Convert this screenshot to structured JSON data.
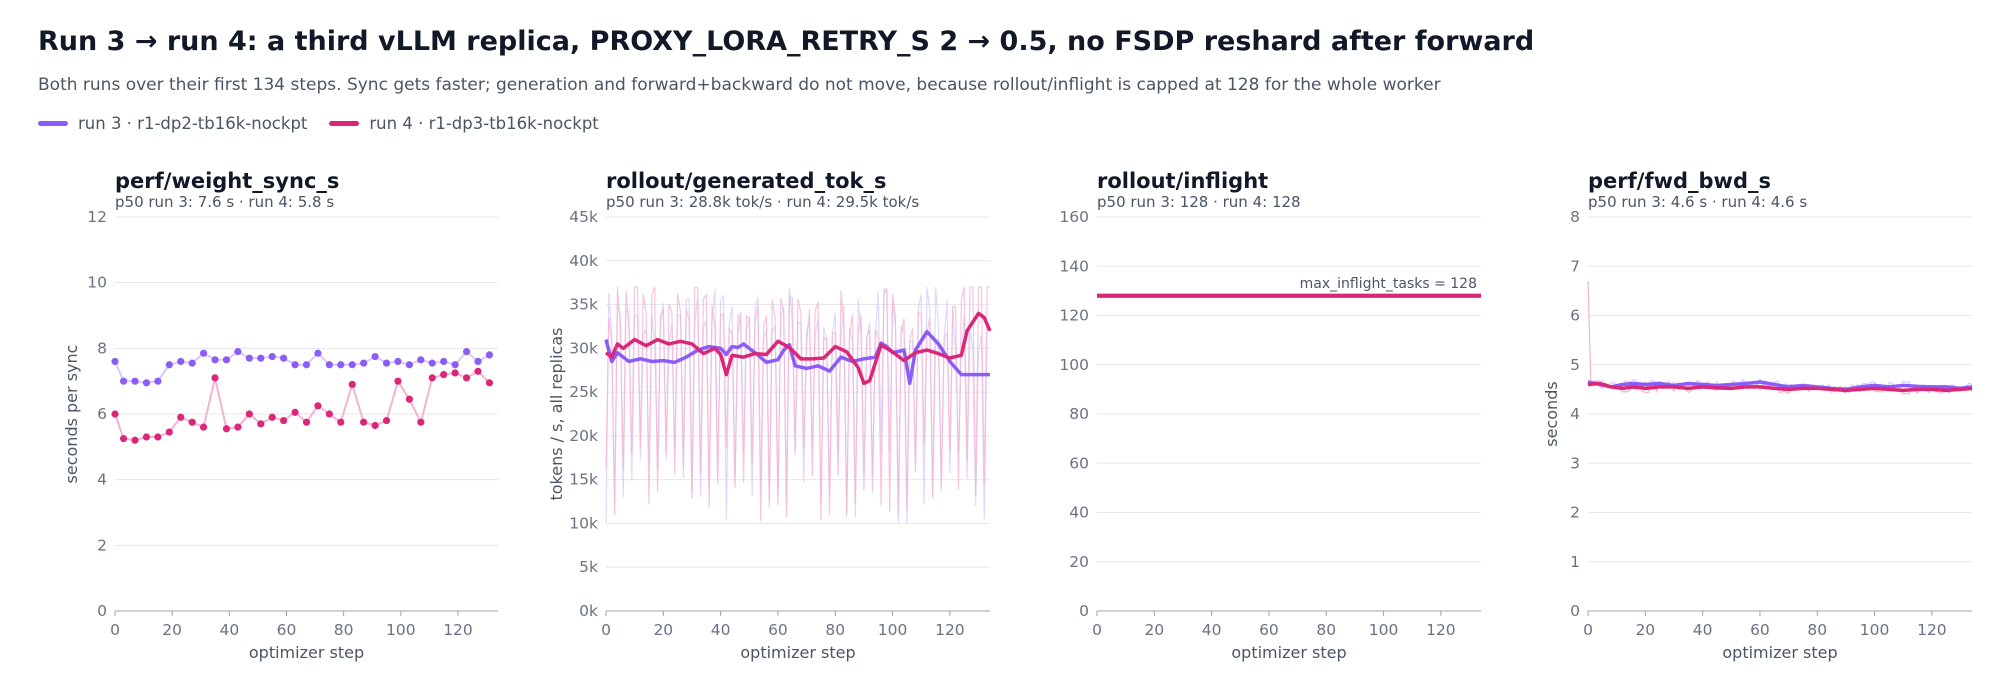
{
  "title": "Run 3 → run 4: a third vLLM replica, PROXY_LORA_RETRY_S 2 → 0.5, no FSDP reshard after forward",
  "subtitle": "Both runs over their first 134 steps. Sync gets faster; generation and forward+backward do not move, because rollout/inflight is capped at 128 for the whole worker",
  "legend": [
    {
      "label": "run 3 · r1-dp2-tb16k-nockpt",
      "color": "#8b5cf6"
    },
    {
      "label": "run 4 · r1-dp3-tb16k-nockpt",
      "color": "#db2777"
    }
  ],
  "colors": {
    "run3": "#8b5cf6",
    "run4": "#db2777",
    "run3_light": "#d8c9fb",
    "run4_light": "#f5b3d0",
    "grid": "#e5e7eb"
  },
  "chart_data": [
    {
      "type": "line",
      "title": "perf/weight_sync_s",
      "subtitle": "p50  run 3: 7.6 s   ·   run 4: 5.8 s",
      "xlabel": "optimizer step",
      "ylabel": "seconds per sync",
      "xlim": [
        0,
        134
      ],
      "xticks": [
        0,
        20,
        40,
        60,
        80,
        100,
        120
      ],
      "ylim": [
        0,
        12
      ],
      "yticks": [
        0,
        2,
        4,
        6,
        8,
        10,
        12
      ],
      "grid": true,
      "markers": true,
      "series": [
        {
          "name": "run 3",
          "x": [
            0,
            3,
            7,
            11,
            15,
            19,
            23,
            27,
            31,
            35,
            39,
            43,
            47,
            51,
            55,
            59,
            63,
            67,
            71,
            75,
            79,
            83,
            87,
            91,
            95,
            99,
            103,
            107,
            111,
            115,
            119,
            123,
            127,
            131
          ],
          "values": [
            7.6,
            7.0,
            7.0,
            6.95,
            7.0,
            7.5,
            7.6,
            7.55,
            7.85,
            7.65,
            7.65,
            7.9,
            7.7,
            7.7,
            7.75,
            7.7,
            7.5,
            7.5,
            7.85,
            7.5,
            7.5,
            7.5,
            7.55,
            7.75,
            7.55,
            7.6,
            7.5,
            7.65,
            7.55,
            7.6,
            7.5,
            7.9,
            7.6,
            7.8
          ]
        },
        {
          "name": "run 4",
          "x": [
            0,
            3,
            7,
            11,
            15,
            19,
            23,
            27,
            31,
            35,
            39,
            43,
            47,
            51,
            55,
            59,
            63,
            67,
            71,
            75,
            79,
            83,
            87,
            91,
            95,
            99,
            103,
            107,
            111,
            115,
            119,
            123,
            127,
            131
          ],
          "values": [
            6.0,
            5.25,
            5.2,
            5.3,
            5.3,
            5.45,
            5.9,
            5.75,
            5.6,
            7.1,
            5.55,
            5.6,
            6.0,
            5.7,
            5.9,
            5.8,
            6.05,
            5.75,
            6.25,
            6.0,
            5.75,
            6.9,
            5.75,
            5.65,
            5.8,
            7.0,
            6.45,
            5.75,
            7.1,
            7.2,
            7.25,
            7.1,
            7.3,
            6.95
          ]
        }
      ]
    },
    {
      "type": "line",
      "title": "rollout/generated_tok_s",
      "subtitle": "p50  run 3: 28.8k tok/s   ·   run 4: 29.5k tok/s",
      "xlabel": "optimizer step",
      "ylabel": "tokens / s, all replicas",
      "xlim": [
        0,
        134
      ],
      "xticks": [
        0,
        20,
        40,
        60,
        80,
        100,
        120
      ],
      "ylim": [
        0,
        45000
      ],
      "yticks": [
        0,
        5000,
        10000,
        15000,
        20000,
        25000,
        30000,
        35000,
        40000,
        45000
      ],
      "ytick_labels": [
        "0k",
        "5k",
        "10k",
        "15k",
        "20k",
        "25k",
        "30k",
        "35k",
        "40k",
        "45k"
      ],
      "grid": true,
      "series": [
        {
          "name": "run 3 (smoothed)",
          "x": [
            0,
            2,
            4,
            8,
            12,
            16,
            20,
            24,
            28,
            32,
            36,
            40,
            42,
            44,
            46,
            48,
            52,
            56,
            60,
            62,
            64,
            66,
            70,
            74,
            78,
            82,
            86,
            90,
            94,
            96,
            98,
            100,
            104,
            106,
            108,
            112,
            116,
            120,
            124,
            128,
            134
          ],
          "values": [
            31000,
            28500,
            29500,
            28500,
            28800,
            28500,
            28600,
            28400,
            29000,
            29800,
            30200,
            30000,
            29300,
            30200,
            30100,
            30500,
            29500,
            28400,
            28700,
            29800,
            30400,
            28000,
            27700,
            28000,
            27400,
            29000,
            28500,
            28800,
            29000,
            30600,
            30200,
            29500,
            29800,
            26000,
            29800,
            31900,
            30500,
            28500,
            27000,
            27000,
            27000
          ]
        },
        {
          "name": "run 4 (smoothed)",
          "x": [
            0,
            2,
            4,
            6,
            10,
            14,
            18,
            22,
            26,
            30,
            34,
            38,
            40,
            42,
            44,
            48,
            52,
            56,
            60,
            64,
            68,
            72,
            76,
            80,
            84,
            88,
            90,
            92,
            96,
            100,
            104,
            108,
            112,
            116,
            120,
            124,
            126,
            128,
            130,
            132,
            134
          ],
          "values": [
            29500,
            29000,
            30500,
            30000,
            31000,
            30300,
            31000,
            30500,
            30800,
            30500,
            29400,
            30000,
            29300,
            27000,
            29200,
            29000,
            29400,
            29300,
            30800,
            30100,
            28800,
            28800,
            28900,
            30200,
            29600,
            27800,
            26000,
            26300,
            30400,
            29600,
            28600,
            29500,
            29800,
            29400,
            28900,
            29200,
            32000,
            33000,
            34000,
            33500,
            32000
          ]
        }
      ]
    },
    {
      "type": "line",
      "title": "rollout/inflight",
      "subtitle": "p50  run 3: 128   ·   run 4: 128",
      "xlabel": "optimizer step",
      "ylabel": "",
      "xlim": [
        0,
        134
      ],
      "xticks": [
        0,
        20,
        40,
        60,
        80,
        100,
        120
      ],
      "ylim": [
        0,
        160
      ],
      "yticks": [
        0,
        20,
        40,
        60,
        80,
        100,
        120,
        140,
        160
      ],
      "grid": true,
      "annotation": "max_inflight_tasks = 128",
      "series": [
        {
          "name": "run 3",
          "x": [
            0,
            134
          ],
          "values": [
            128,
            128
          ]
        },
        {
          "name": "run 4",
          "x": [
            0,
            134
          ],
          "values": [
            128,
            128
          ]
        }
      ]
    },
    {
      "type": "line",
      "title": "perf/fwd_bwd_s",
      "subtitle": "p50  run 3: 4.6 s   ·   run 4: 4.6 s",
      "xlabel": "optimizer step",
      "ylabel": "seconds",
      "xlim": [
        0,
        134
      ],
      "xticks": [
        0,
        20,
        40,
        60,
        80,
        100,
        120
      ],
      "ylim": [
        0,
        8
      ],
      "yticks": [
        0,
        1,
        2,
        3,
        4,
        5,
        6,
        7,
        8
      ],
      "grid": true,
      "series": [
        {
          "name": "run 3 (smoothed)",
          "x": [
            0,
            4,
            8,
            12,
            16,
            20,
            25,
            30,
            35,
            40,
            45,
            50,
            55,
            60,
            65,
            70,
            75,
            80,
            85,
            90,
            95,
            100,
            105,
            110,
            115,
            120,
            125,
            130,
            134
          ],
          "values": [
            4.65,
            4.6,
            4.55,
            4.6,
            4.62,
            4.6,
            4.62,
            4.58,
            4.62,
            4.6,
            4.58,
            4.6,
            4.62,
            4.65,
            4.6,
            4.55,
            4.58,
            4.55,
            4.52,
            4.5,
            4.55,
            4.58,
            4.55,
            4.58,
            4.56,
            4.55,
            4.55,
            4.52,
            4.55
          ]
        },
        {
          "name": "run 4 (smoothed)",
          "x": [
            0,
            4,
            8,
            12,
            16,
            20,
            25,
            30,
            35,
            40,
            45,
            50,
            55,
            60,
            65,
            70,
            75,
            80,
            85,
            90,
            95,
            100,
            105,
            110,
            115,
            120,
            125,
            130,
            134
          ],
          "values": [
            4.6,
            4.62,
            4.55,
            4.52,
            4.55,
            4.52,
            4.55,
            4.55,
            4.52,
            4.55,
            4.53,
            4.52,
            4.55,
            4.55,
            4.52,
            4.5,
            4.52,
            4.52,
            4.5,
            4.48,
            4.5,
            4.52,
            4.5,
            4.48,
            4.5,
            4.5,
            4.48,
            4.5,
            4.52
          ]
        }
      ]
    }
  ]
}
